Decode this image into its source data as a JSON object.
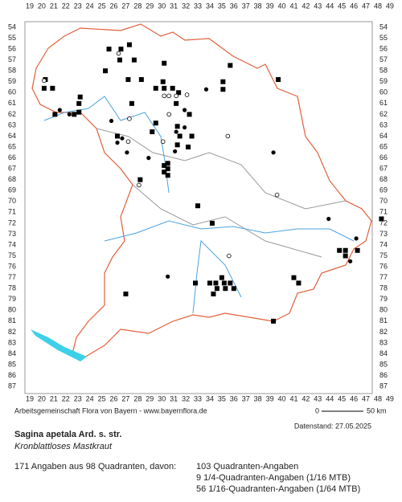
{
  "map": {
    "x_labels": [
      19,
      20,
      21,
      22,
      23,
      24,
      25,
      26,
      27,
      28,
      29,
      30,
      31,
      32,
      33,
      34,
      35,
      36,
      37,
      38,
      39,
      40,
      41,
      42,
      43,
      44,
      45,
      46,
      47,
      48,
      49
    ],
    "y_labels": [
      54,
      55,
      56,
      57,
      58,
      59,
      60,
      61,
      62,
      63,
      64,
      65,
      66,
      67,
      68,
      69,
      70,
      71,
      72,
      73,
      74,
      75,
      76,
      77,
      78,
      79,
      80,
      81,
      82,
      83,
      84,
      85,
      86,
      87
    ],
    "points": {
      "squares": [
        [
          25.6,
          56
        ],
        [
          26.6,
          56
        ],
        [
          27.3,
          55.6
        ],
        [
          26.5,
          57
        ],
        [
          25.3,
          58
        ],
        [
          27.7,
          57
        ],
        [
          30.2,
          57.3
        ],
        [
          35.7,
          57.5
        ],
        [
          20.3,
          58.8
        ],
        [
          20.2,
          59.6
        ],
        [
          20.9,
          59.6
        ],
        [
          27.2,
          58.8
        ],
        [
          28.3,
          58.8
        ],
        [
          30.1,
          59
        ],
        [
          29.5,
          59.6
        ],
        [
          30.2,
          59.6
        ],
        [
          30.9,
          59.6
        ],
        [
          31.4,
          60
        ],
        [
          35.1,
          59
        ],
        [
          35.1,
          59.7
        ],
        [
          39.7,
          58.8
        ],
        [
          23.1,
          61
        ],
        [
          23.2,
          60.4
        ],
        [
          23.1,
          61.8
        ],
        [
          21.1,
          62
        ],
        [
          22.7,
          62
        ],
        [
          27.5,
          61
        ],
        [
          31.2,
          61
        ],
        [
          32.3,
          62
        ],
        [
          31.3,
          63.1
        ],
        [
          29.5,
          62.8
        ],
        [
          31.5,
          64
        ],
        [
          32.5,
          64
        ],
        [
          26.3,
          64
        ],
        [
          29.2,
          63.6
        ],
        [
          31.3,
          64.8
        ],
        [
          32.2,
          65
        ],
        [
          30.5,
          66.5
        ],
        [
          30.2,
          66.7
        ],
        [
          30.5,
          67
        ],
        [
          30.2,
          67.3
        ],
        [
          30.5,
          67.6
        ],
        [
          28.2,
          68
        ],
        [
          33,
          70.4
        ],
        [
          34.2,
          72
        ],
        [
          48.3,
          71.6
        ],
        [
          44.8,
          74.5
        ],
        [
          45.3,
          74.5
        ],
        [
          46.3,
          74.5
        ],
        [
          45.3,
          75
        ],
        [
          32.8,
          77.5
        ],
        [
          34,
          77.5
        ],
        [
          34.5,
          77.5
        ],
        [
          35.2,
          77.5
        ],
        [
          35.7,
          77.5
        ],
        [
          35,
          77
        ],
        [
          34.6,
          78
        ],
        [
          35.3,
          78
        ],
        [
          36,
          78
        ],
        [
          34.3,
          78.5
        ],
        [
          27,
          78.5
        ],
        [
          41,
          77
        ],
        [
          41.4,
          77.5
        ],
        [
          39.3,
          81
        ]
      ],
      "dots": [
        [
          21.5,
          61.6
        ],
        [
          22.3,
          62
        ],
        [
          25.8,
          62.6
        ],
        [
          26.7,
          64.2
        ],
        [
          26.3,
          64.6
        ],
        [
          27.1,
          65.5
        ],
        [
          28.9,
          66
        ],
        [
          31.9,
          63.2
        ],
        [
          31.2,
          63.6
        ],
        [
          31.1,
          65.4
        ],
        [
          31.9,
          61.6
        ],
        [
          33.7,
          59.7
        ],
        [
          39.3,
          65.5
        ],
        [
          43.9,
          71.6
        ],
        [
          46.2,
          73.4
        ],
        [
          45.7,
          75.5
        ],
        [
          30.5,
          76.9
        ]
      ],
      "circles": [
        [
          20.2,
          58.9
        ],
        [
          26.4,
          56.4
        ],
        [
          27.3,
          62.4
        ],
        [
          30.2,
          60.3
        ],
        [
          30.6,
          60.3
        ],
        [
          32.1,
          60.2
        ],
        [
          31.2,
          60.3
        ],
        [
          30.6,
          62
        ],
        [
          27.2,
          64.5
        ],
        [
          30.1,
          64.5
        ],
        [
          35.5,
          64
        ],
        [
          28.1,
          68.5
        ],
        [
          39.6,
          69.4
        ],
        [
          35.6,
          75
        ]
      ]
    }
  },
  "credits": "Arbeitsgemeinschaft Flora von Bayern - www.bayernflora.de",
  "scale": {
    "start": "0",
    "end": "50 km"
  },
  "date": "Datenstand: 27.05.2025",
  "title": "Sagina apetala Ard. s. str.",
  "subtitle": "Kronblattloses Mastkraut",
  "stats": {
    "total": "171 Angaben aus 98 Quadranten, davon:",
    "lines": [
      "103 Quadranten-Angaben",
      "9 1/4-Quadranten-Angaben (1/16 MTB)",
      "56 1/16-Quadranten-Angaben (1/64 MTB)"
    ]
  }
}
